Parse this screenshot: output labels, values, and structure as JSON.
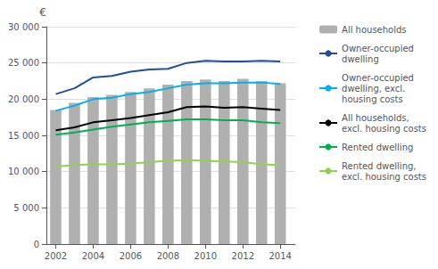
{
  "chart_data": {
    "type": "bar",
    "ylabel": "€",
    "x": [
      2002,
      2003,
      2004,
      2005,
      2006,
      2007,
      2008,
      2009,
      2010,
      2011,
      2012,
      2013,
      2014
    ],
    "xlim": [
      2001.5,
      2014.8
    ],
    "xticks": [
      2002,
      2004,
      2006,
      2008,
      2010,
      2012,
      2014
    ],
    "ylim": [
      0,
      30000
    ],
    "yticks": [
      0,
      {
        "value": 5000,
        "label": "5 000"
      },
      {
        "value": 10000,
        "label": "10 000"
      },
      {
        "value": 15000,
        "label": "15 000"
      },
      {
        "value": 20000,
        "label": "20 000"
      },
      {
        "value": 25000,
        "label": "25 000"
      },
      {
        "value": 30000,
        "label": "30 000"
      }
    ],
    "grid": true,
    "legend": "right",
    "series": [
      {
        "name": "All households",
        "type": "bar",
        "color": "#b0b0b0",
        "values": [
          18500,
          19500,
          20300,
          20600,
          21000,
          21500,
          22000,
          22500,
          22700,
          22500,
          22800,
          22500,
          22200
        ]
      },
      {
        "name": "Owner-occupied\ndwelling",
        "type": "line",
        "color": "#1f4e9c",
        "values": [
          20700,
          21500,
          23000,
          23200,
          23800,
          24100,
          24200,
          25000,
          25300,
          25200,
          25200,
          25300,
          25200
        ]
      },
      {
        "name": "Owner-occupied\ndwelling, excl.\nhousing costs",
        "type": "line",
        "color": "#00b0f0",
        "values": [
          18400,
          19100,
          20000,
          20200,
          20700,
          21000,
          21500,
          22000,
          22200,
          22200,
          22300,
          22300,
          22100
        ]
      },
      {
        "name": "All households,\nexcl. housing costs",
        "type": "line",
        "color": "#000000",
        "values": [
          15700,
          16100,
          16800,
          17100,
          17400,
          17800,
          18200,
          18900,
          19000,
          18800,
          18900,
          18700,
          18500
        ]
      },
      {
        "name": "Rented dwelling",
        "type": "line",
        "color": "#00b050",
        "values": [
          15100,
          15400,
          15800,
          16200,
          16500,
          16800,
          17000,
          17200,
          17200,
          17100,
          17100,
          16800,
          16700
        ]
      },
      {
        "name": "Rented dwelling,\nexcl. housing costs",
        "type": "line",
        "color": "#92d050",
        "values": [
          10700,
          10900,
          11000,
          11000,
          11100,
          11300,
          11500,
          11600,
          11500,
          11400,
          11300,
          11000,
          10900
        ]
      }
    ]
  }
}
